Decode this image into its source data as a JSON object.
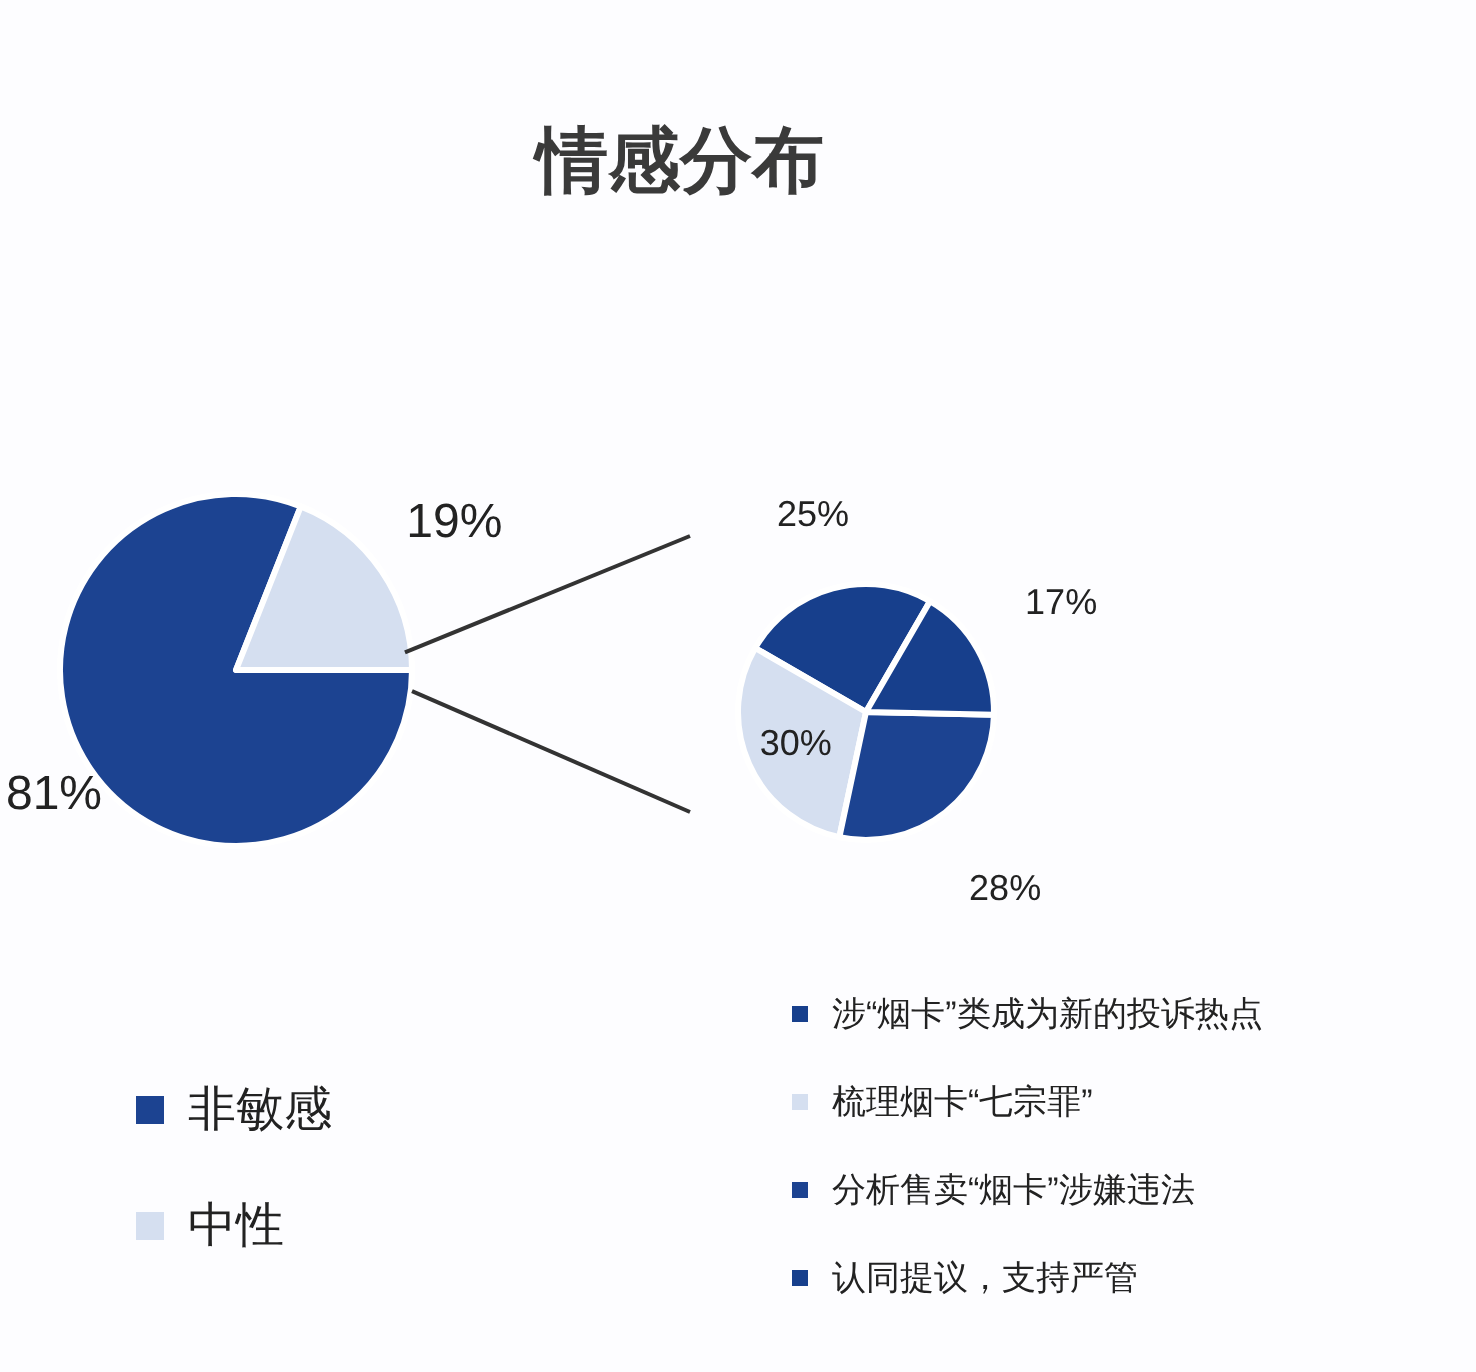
{
  "chart_data": [
    {
      "type": "pie",
      "title": "情感分布",
      "categories": [
        "非敏感",
        "中性"
      ],
      "values": [
        81,
        19
      ],
      "colors": [
        "#1c4391",
        "#d5dff0"
      ],
      "value_labels": [
        "81%",
        "19%"
      ],
      "legend": "bottom"
    },
    {
      "type": "pie",
      "categories": [
        "涉“烟卡”类成为新的投诉热点",
        "梳理烟卡“七宗罪”",
        "分析售卖“烟卡”涉嫌违法",
        "认同提议，支持严管"
      ],
      "values": [
        25,
        30,
        28,
        17
      ],
      "colors": [
        "#173f8c",
        "#d5dff0",
        "#1c4391",
        "#173f8c"
      ],
      "value_labels": [
        "25%",
        "30%",
        "28%",
        "17%"
      ],
      "legend": "bottom"
    }
  ]
}
